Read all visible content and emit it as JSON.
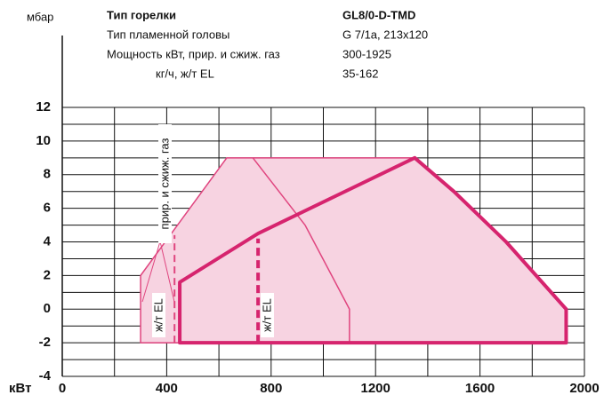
{
  "chart_data": {
    "type": "area",
    "y_unit": "мбар",
    "x_unit": "кВт",
    "info": [
      {
        "label": "Тип горелки",
        "value": "GL8/0-D-TMD"
      },
      {
        "label": "Тип пламенной головы",
        "value": "G 7/1a, 213x120"
      },
      {
        "label": "Мощность кВт, прир. и сжиж. газ",
        "value": "300-1925"
      },
      {
        "label": "кг/ч, ж/т EL",
        "value": "35-162"
      }
    ],
    "xlim": [
      0,
      2000
    ],
    "ylim": [
      -4,
      12
    ],
    "xticks": [
      0,
      400,
      800,
      1200,
      1600,
      2000
    ],
    "yticks": [
      -4,
      -2,
      0,
      2,
      4,
      6,
      8,
      10,
      12
    ],
    "xgrid": [
      200,
      400,
      600,
      800,
      1000,
      1200,
      1400,
      1600,
      1800,
      2000
    ],
    "ygrid": [
      -4,
      -3,
      -2,
      -1,
      0,
      1,
      2,
      3,
      4,
      5,
      6,
      7,
      8,
      9,
      10,
      11,
      12
    ],
    "series": [
      {
        "color": "#e0457f",
        "fill": "#f7d3e1",
        "width": 1.5,
        "closed": true,
        "x": [
          300,
          300,
          630,
          1350,
          1500,
          1700,
          1930,
          1930
        ],
        "values": [
          -2,
          2,
          9,
          9,
          7,
          4,
          0,
          -2
        ]
      },
      {
        "color": "#e0457f",
        "width": 1.5,
        "x": [
          730,
          930,
          1100,
          1100
        ],
        "values": [
          9,
          5,
          0,
          -2
        ]
      },
      {
        "color": "#d6246e",
        "width": 4,
        "closed": true,
        "x": [
          450,
          450,
          750,
          1350,
          1500,
          1700,
          1930,
          1930
        ],
        "values": [
          -2,
          1.6,
          4.5,
          9,
          7,
          4,
          0,
          -2
        ]
      },
      {
        "color": "#e0457f",
        "width": 2,
        "dash": "8 5",
        "x": [
          430,
          430
        ],
        "values": [
          -2,
          4.4
        ]
      },
      {
        "name": "ж/т EL",
        "color": "#d6246e",
        "width": 4,
        "dash": "9 5",
        "x": [
          750,
          750
        ],
        "values": [
          -2,
          4.2
        ]
      }
    ],
    "annotations": [
      "прир. и сжиж. газ",
      "ж/т EL"
    ]
  }
}
